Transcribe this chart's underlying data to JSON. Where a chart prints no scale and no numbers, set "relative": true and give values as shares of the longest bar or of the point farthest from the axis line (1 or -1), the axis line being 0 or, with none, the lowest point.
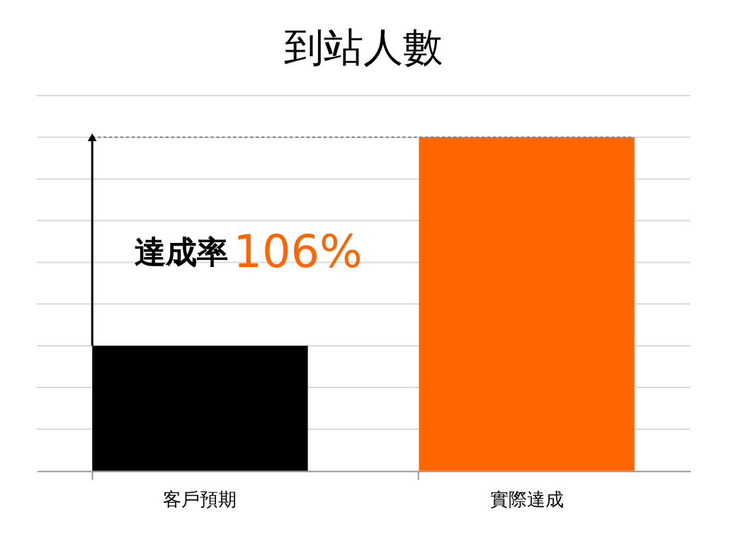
{
  "chart_data": {
    "type": "bar",
    "title": "到站人數",
    "relative": true,
    "grid": "y",
    "categories": [
      "客戶預期",
      "實際達成"
    ],
    "values": [
      0.375,
      1
    ],
    "colors": [
      "#000000",
      "#ff6600"
    ],
    "ref_lines": [
      {
        "axis": "y",
        "value": 1,
        "line_style": "dotted",
        "color": "#7f7f7f"
      }
    ],
    "annotations": [
      "達成率",
      "106%"
    ]
  }
}
